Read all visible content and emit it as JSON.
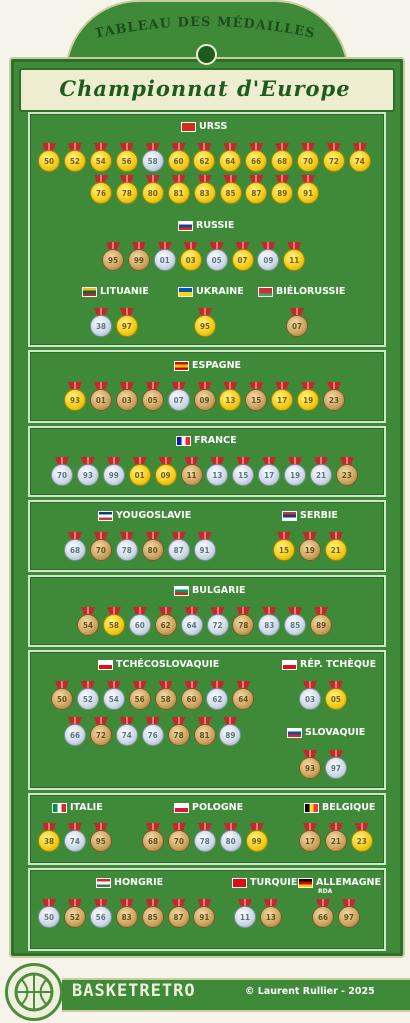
{
  "header": {
    "ribbon_text": "TABLEAU DES MÉDAILLES",
    "title": "Championnat d'Europe"
  },
  "footer": {
    "brand": "BASKETRETRO",
    "copyright": "© Laurent Rullier - 2025"
  },
  "countries": [
    {
      "id": "urss",
      "name": "URSS",
      "colors": [
        "#d52b1e",
        "#d52b1e"
      ],
      "medals": [
        [
          "50",
          "g"
        ],
        [
          "52",
          "g"
        ],
        [
          "54",
          "g"
        ],
        [
          "56",
          "g"
        ],
        [
          "58",
          "s"
        ],
        [
          "60",
          "g"
        ],
        [
          "62",
          "g"
        ],
        [
          "64",
          "g"
        ],
        [
          "66",
          "g"
        ],
        [
          "68",
          "g"
        ],
        [
          "70",
          "g"
        ],
        [
          "72",
          "g"
        ],
        [
          "74",
          "g"
        ],
        [
          "76",
          "g"
        ],
        [
          "78",
          "g"
        ],
        [
          "80",
          "g"
        ],
        [
          "81",
          "g"
        ],
        [
          "83",
          "g"
        ],
        [
          "85",
          "g"
        ],
        [
          "87",
          "g"
        ],
        [
          "89",
          "g"
        ],
        [
          "91",
          "g"
        ]
      ]
    },
    {
      "id": "russie",
      "name": "RUSSIE",
      "colors": [
        "#ffffff",
        "#1c3f94",
        "#d52b1e"
      ],
      "medals": [
        [
          "95",
          "b"
        ],
        [
          "99",
          "b"
        ],
        [
          "01",
          "s"
        ],
        [
          "03",
          "g"
        ],
        [
          "05",
          "s"
        ],
        [
          "07",
          "g"
        ],
        [
          "09",
          "s"
        ],
        [
          "11",
          "g"
        ]
      ]
    },
    {
      "id": "lituanie",
      "name": "LITUANIE",
      "colors": [
        "#fdb913",
        "#006a44",
        "#c1272d"
      ],
      "medals": [
        [
          "38",
          "s"
        ],
        [
          "97",
          "g"
        ]
      ]
    },
    {
      "id": "ukraine",
      "name": "UKRAINE",
      "colors": [
        "#0057b7",
        "#ffd700"
      ],
      "medals": [
        [
          "95",
          "g"
        ]
      ]
    },
    {
      "id": "bielorussie",
      "name": "BIÉLORUSSIE",
      "colors": [
        "#c8313e",
        "#c8313e",
        "#4aa657"
      ],
      "medals": [
        [
          "07",
          "b"
        ]
      ]
    },
    {
      "id": "espagne",
      "name": "ESPAGNE",
      "colors": [
        "#c60b1e",
        "#ffc400",
        "#c60b1e"
      ],
      "medals": [
        [
          "93",
          "g"
        ],
        [
          "01",
          "b"
        ],
        [
          "03",
          "b"
        ],
        [
          "05",
          "b"
        ],
        [
          "07",
          "s"
        ],
        [
          "09",
          "b"
        ],
        [
          "13",
          "g"
        ],
        [
          "15",
          "b"
        ],
        [
          "17",
          "g"
        ],
        [
          "19",
          "g"
        ],
        [
          "23",
          "b"
        ]
      ]
    },
    {
      "id": "france",
      "name": "FRANCE",
      "colors": [
        "#002395",
        "#ffffff",
        "#ed2939"
      ],
      "medals": [
        [
          "70",
          "s"
        ],
        [
          "93",
          "s"
        ],
        [
          "99",
          "s"
        ],
        [
          "01",
          "g"
        ],
        [
          "09",
          "g"
        ],
        [
          "11",
          "b"
        ],
        [
          "13",
          "s"
        ],
        [
          "15",
          "s"
        ],
        [
          "17",
          "s"
        ],
        [
          "19",
          "s"
        ],
        [
          "21",
          "s"
        ],
        [
          "23",
          "b"
        ]
      ]
    },
    {
      "id": "yougoslavie",
      "name": "YOUGOSLAVIE",
      "colors": [
        "#0c4076",
        "#ffffff",
        "#c6363c"
      ],
      "medals": [
        [
          "68",
          "s"
        ],
        [
          "70",
          "b"
        ],
        [
          "78",
          "s"
        ],
        [
          "80",
          "b"
        ],
        [
          "87",
          "s"
        ],
        [
          "91",
          "s"
        ]
      ]
    },
    {
      "id": "serbie",
      "name": "SERBIE",
      "colors": [
        "#c6363c",
        "#0c4076",
        "#ffffff"
      ],
      "medals": [
        [
          "15",
          "g"
        ],
        [
          "19",
          "b"
        ],
        [
          "21",
          "g"
        ]
      ]
    },
    {
      "id": "bulgarie",
      "name": "BULGARIE",
      "colors": [
        "#ffffff",
        "#00966e",
        "#d62612"
      ],
      "medals": [
        [
          "54",
          "b"
        ],
        [
          "58",
          "g"
        ],
        [
          "60",
          "s"
        ],
        [
          "62",
          "b"
        ],
        [
          "64",
          "s"
        ],
        [
          "72",
          "s"
        ],
        [
          "78",
          "b"
        ],
        [
          "83",
          "s"
        ],
        [
          "85",
          "s"
        ],
        [
          "89",
          "b"
        ]
      ]
    },
    {
      "id": "tchecoslovaquie",
      "name": "TCHÉCOSLOVAQUIE",
      "colors": [
        "#ffffff",
        "#d7141a"
      ],
      "medals": [
        [
          "50",
          "b"
        ],
        [
          "52",
          "s"
        ],
        [
          "54",
          "s"
        ],
        [
          "56",
          "b"
        ],
        [
          "58",
          "b"
        ],
        [
          "60",
          "b"
        ],
        [
          "62",
          "s"
        ],
        [
          "64",
          "b"
        ],
        [
          "66",
          "s"
        ],
        [
          "72",
          "b"
        ],
        [
          "74",
          "s"
        ],
        [
          "76",
          "s"
        ],
        [
          "78",
          "b"
        ],
        [
          "81",
          "b"
        ],
        [
          "89",
          "s"
        ]
      ]
    },
    {
      "id": "rep_tcheque",
      "name": "RÉP. TCHÈQUE",
      "colors": [
        "#ffffff",
        "#d7141a"
      ],
      "medals": [
        [
          "03",
          "s"
        ],
        [
          "05",
          "g"
        ]
      ]
    },
    {
      "id": "slovaquie",
      "name": "SLOVAQUIE",
      "colors": [
        "#ffffff",
        "#0b4ea2",
        "#ee1c25"
      ],
      "medals": [
        [
          "93",
          "b"
        ],
        [
          "97",
          "s"
        ]
      ]
    },
    {
      "id": "italie",
      "name": "ITALIE",
      "colors": [
        "#009246",
        "#ffffff",
        "#ce2b37"
      ],
      "medals": [
        [
          "38",
          "g"
        ],
        [
          "74",
          "s"
        ],
        [
          "95",
          "b"
        ]
      ]
    },
    {
      "id": "pologne",
      "name": "POLOGNE",
      "colors": [
        "#ffffff",
        "#dc143c"
      ],
      "medals": [
        [
          "68",
          "b"
        ],
        [
          "70",
          "b"
        ],
        [
          "78",
          "s"
        ],
        [
          "80",
          "s"
        ],
        [
          "99",
          "g"
        ]
      ]
    },
    {
      "id": "belgique",
      "name": "BELGIQUE",
      "colors": [
        "#000000",
        "#fdda24",
        "#ef3340"
      ],
      "medals": [
        [
          "17",
          "b"
        ],
        [
          "21",
          "b"
        ],
        [
          "23",
          "g"
        ]
      ]
    },
    {
      "id": "hongrie",
      "name": "HONGRIE",
      "colors": [
        "#ce2939",
        "#ffffff",
        "#477050"
      ],
      "medals": [
        [
          "50",
          "s"
        ],
        [
          "52",
          "b"
        ],
        [
          "56",
          "s"
        ],
        [
          "83",
          "b"
        ],
        [
          "85",
          "b"
        ],
        [
          "87",
          "b"
        ],
        [
          "91",
          "b"
        ]
      ]
    },
    {
      "id": "turquie",
      "name": "TURQUIE",
      "colors": [
        "#e30a17",
        "#e30a17"
      ],
      "medals": [
        [
          "11",
          "s"
        ],
        [
          "13",
          "b"
        ]
      ]
    },
    {
      "id": "allemagne",
      "name": "ALLEMAGNE",
      "sub": "RDA",
      "colors": [
        "#000000",
        "#dd0000",
        "#ffce00"
      ],
      "medals": [
        [
          "66",
          "b"
        ],
        [
          "97",
          "b"
        ]
      ]
    }
  ]
}
